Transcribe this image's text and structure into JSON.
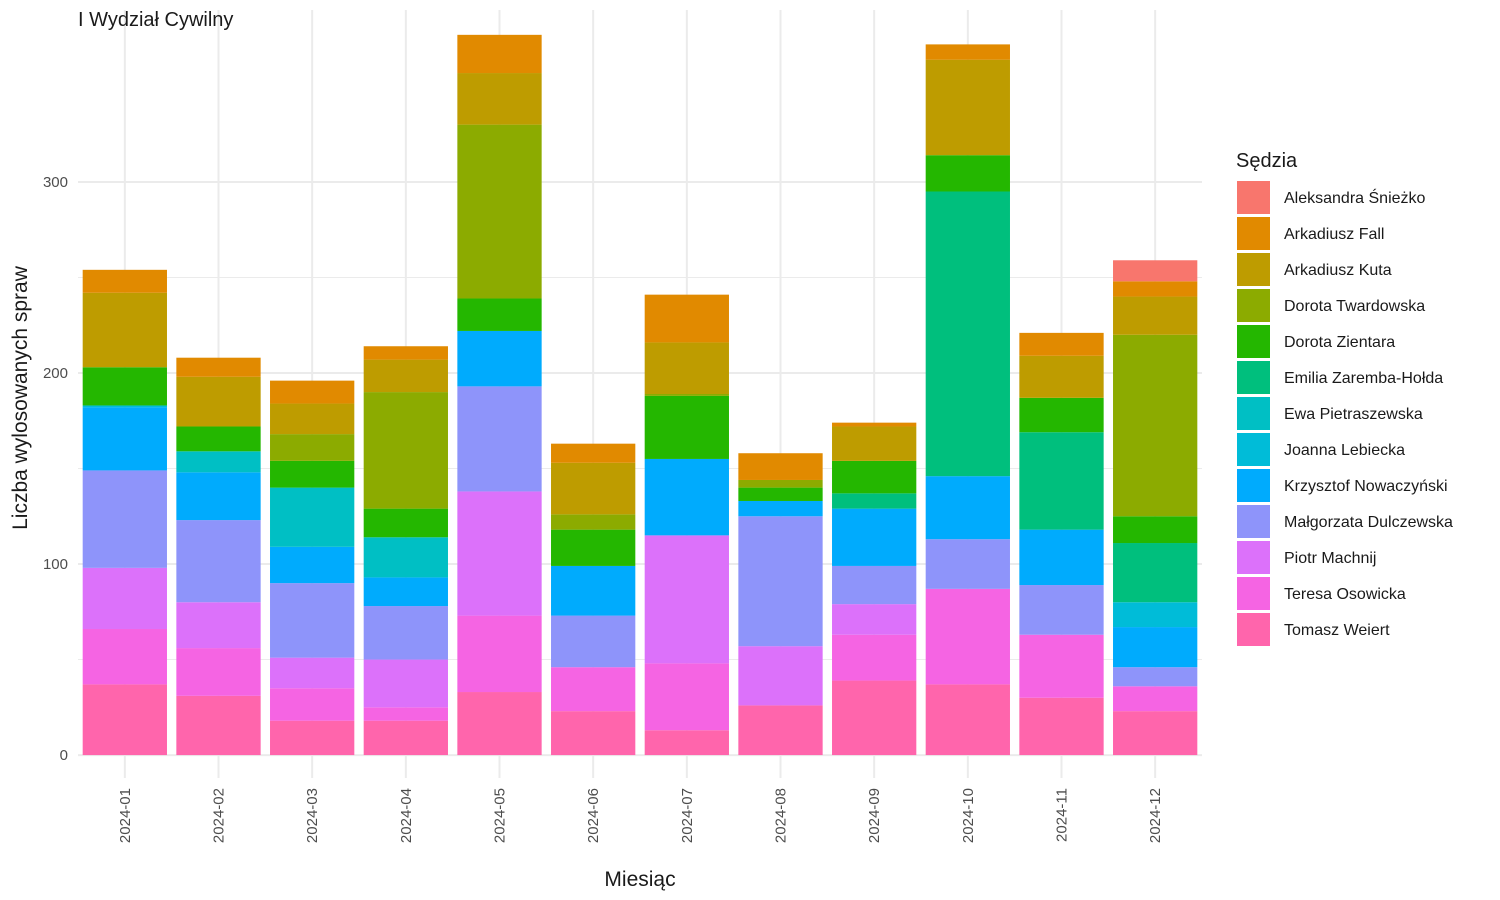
{
  "chart_data": {
    "type": "bar",
    "stacked": true,
    "title": "I Wydział Cywilny",
    "xlabel": "Miesiąc",
    "ylabel": "Liczba wylosowanych spraw",
    "ylim": [
      -12,
      390
    ],
    "yticks": [
      0,
      100,
      200,
      300
    ],
    "grid": true,
    "legend": {
      "title": "Sędzia",
      "position": "right"
    },
    "categories": [
      "2024-01",
      "2024-02",
      "2024-03",
      "2024-04",
      "2024-05",
      "2024-06",
      "2024-07",
      "2024-08",
      "2024-09",
      "2024-10",
      "2024-11",
      "2024-12"
    ],
    "series": [
      {
        "name": "Tomasz Weiert",
        "color": "#FF65AC",
        "values": [
          37,
          31,
          18,
          18,
          33,
          23,
          13,
          26,
          39,
          37,
          30,
          23
        ]
      },
      {
        "name": "Teresa Osowicka",
        "color": "#F564E3",
        "values": [
          29,
          25,
          17,
          7,
          40,
          23,
          35,
          0,
          24,
          50,
          33,
          13
        ]
      },
      {
        "name": "Piotr Machnij",
        "color": "#DC71FA",
        "values": [
          32,
          24,
          16,
          25,
          65,
          0,
          67,
          31,
          16,
          0,
          0,
          0
        ]
      },
      {
        "name": "Małgorzata Dulczewska",
        "color": "#8E94FA",
        "values": [
          51,
          43,
          39,
          28,
          55,
          27,
          0,
          68,
          20,
          26,
          26,
          10
        ]
      },
      {
        "name": "Krzysztof Nowaczyński",
        "color": "#00ABFD",
        "values": [
          33,
          25,
          19,
          15,
          29,
          26,
          40,
          8,
          30,
          33,
          29,
          21
        ]
      },
      {
        "name": "Joanna Lebiecka",
        "color": "#00BCD8",
        "values": [
          1,
          0,
          0,
          0,
          0,
          0,
          0,
          0,
          0,
          0,
          0,
          13
        ]
      },
      {
        "name": "Ewa Pietraszewska",
        "color": "#00BFC4",
        "values": [
          0,
          11,
          31,
          21,
          0,
          0,
          0,
          0,
          0,
          0,
          0,
          0
        ]
      },
      {
        "name": "Emilia Zaremba-Hołda",
        "color": "#00BF7D",
        "values": [
          0,
          0,
          0,
          0,
          0,
          0,
          0,
          0,
          8,
          149,
          51,
          31
        ]
      },
      {
        "name": "Dorota Zientara",
        "color": "#24B700",
        "values": [
          20,
          13,
          14,
          15,
          17,
          19,
          33,
          7,
          17,
          19,
          18,
          14
        ]
      },
      {
        "name": "Dorota Twardowska",
        "color": "#8CAB00",
        "values": [
          0,
          0,
          14,
          61,
          91,
          8,
          1,
          4,
          0,
          0,
          0,
          95
        ]
      },
      {
        "name": "Arkadiusz Kuta",
        "color": "#BE9C00",
        "values": [
          39,
          26,
          16,
          17,
          27,
          27,
          27,
          0,
          18,
          50,
          22,
          20
        ]
      },
      {
        "name": "Arkadiusz Fall",
        "color": "#E18A00",
        "values": [
          12,
          10,
          12,
          7,
          20,
          10,
          25,
          14,
          2,
          8,
          12,
          8
        ]
      },
      {
        "name": "Aleksandra Śnieżko",
        "color": "#F8766D",
        "values": [
          0,
          0,
          0,
          0,
          0,
          0,
          0,
          0,
          0,
          0,
          0,
          11
        ]
      }
    ],
    "legend_order": [
      "Aleksandra Śnieżko",
      "Arkadiusz Fall",
      "Arkadiusz Kuta",
      "Dorota Twardowska",
      "Dorota Zientara",
      "Emilia Zaremba-Hołda",
      "Ewa Pietraszewska",
      "Joanna Lebiecka",
      "Krzysztof Nowaczyński",
      "Małgorzata Dulczewska",
      "Piotr Machnij",
      "Teresa Osowicka",
      "Tomasz Weiert"
    ],
    "colors": {
      "grid": "#EBEBEB",
      "background": "#FFFFFF"
    }
  }
}
